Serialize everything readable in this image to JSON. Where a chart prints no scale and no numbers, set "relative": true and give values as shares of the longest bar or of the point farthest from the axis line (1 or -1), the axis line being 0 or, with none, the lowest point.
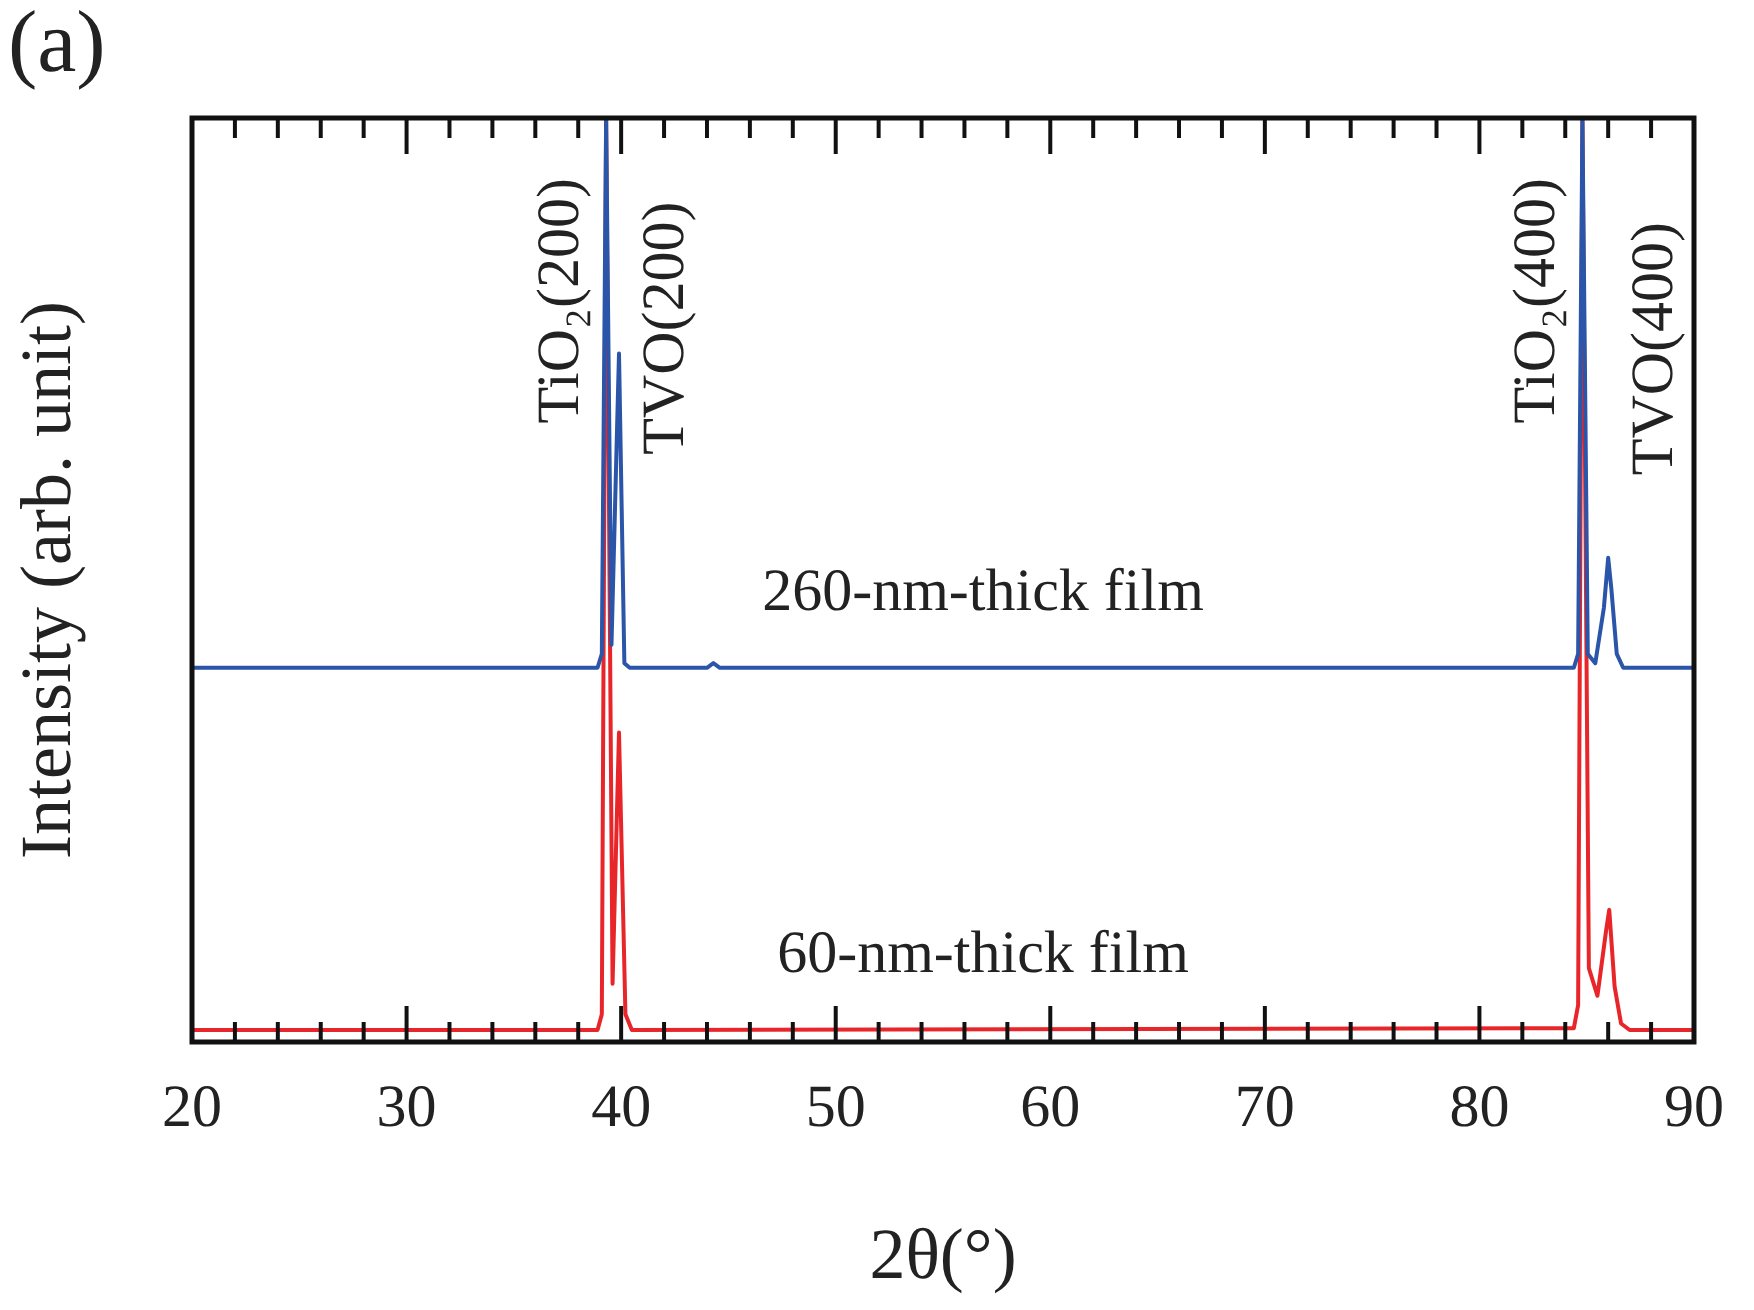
{
  "chart_data": {
    "type": "line",
    "relative": true,
    "xlabel": "2θ(°)",
    "ylabel": "Intensity (arb. unit)",
    "xlim": [
      20,
      90
    ],
    "xticks": [
      20,
      {
        "value": 22,
        "label": null
      },
      {
        "value": 24,
        "label": null
      },
      {
        "value": 26,
        "label": null
      },
      {
        "value": 28,
        "label": null
      },
      30,
      {
        "value": 32,
        "label": null
      },
      {
        "value": 34,
        "label": null
      },
      {
        "value": 36,
        "label": null
      },
      {
        "value": 38,
        "label": null
      },
      40,
      {
        "value": 42,
        "label": null
      },
      {
        "value": 44,
        "label": null
      },
      {
        "value": 46,
        "label": null
      },
      {
        "value": 48,
        "label": null
      },
      50,
      {
        "value": 52,
        "label": null
      },
      {
        "value": 54,
        "label": null
      },
      {
        "value": 56,
        "label": null
      },
      {
        "value": 58,
        "label": null
      },
      60,
      {
        "value": 62,
        "label": null
      },
      {
        "value": 64,
        "label": null
      },
      {
        "value": 66,
        "label": null
      },
      {
        "value": 68,
        "label": null
      },
      70,
      {
        "value": 72,
        "label": null
      },
      {
        "value": 74,
        "label": null
      },
      {
        "value": 76,
        "label": null
      },
      {
        "value": 78,
        "label": null
      },
      80,
      {
        "value": 82,
        "label": null
      },
      {
        "value": 84,
        "label": null
      },
      {
        "value": 86,
        "label": null
      },
      {
        "value": 88,
        "label": null
      },
      90
    ],
    "legend": false,
    "grid": false,
    "marker": "none",
    "line_style": "solid",
    "series": [
      {
        "name": "260-nm-thick film",
        "color": "#2a55a8",
        "x": [
          20,
          38.9,
          39.1,
          39.3,
          39.55,
          39.9,
          40.15,
          40.4,
          44,
          44.3,
          44.6,
          84.4,
          84.6,
          84.8,
          85.05,
          85.4,
          85.8,
          86.0,
          86.15,
          86.4,
          86.7,
          90
        ],
        "values": [
          0.405,
          0.405,
          0.42,
          1,
          0.43,
          0.745,
          0.41,
          0.405,
          0.405,
          0.41,
          0.405,
          0.405,
          0.42,
          1,
          0.42,
          0.41,
          0.47,
          0.524,
          0.49,
          0.42,
          0.405,
          0.405
        ]
      },
      {
        "name": "60-nm-thick film",
        "color": "#e8262a",
        "x": [
          20,
          38.9,
          39.1,
          39.3,
          39.6,
          39.9,
          40.2,
          40.5,
          84.4,
          84.6,
          84.8,
          85.1,
          85.5,
          85.9,
          86.05,
          86.3,
          86.6,
          87,
          90
        ],
        "values": [
          0.013,
          0.013,
          0.03,
          1,
          0.063,
          0.335,
          0.03,
          0.013,
          0.015,
          0.04,
          1,
          0.08,
          0.05,
          0.12,
          0.143,
          0.06,
          0.02,
          0.013,
          0.013
        ]
      }
    ],
    "annotations": [
      "(a)",
      {
        "text": "TiO₂(200)",
        "x": 39.3,
        "y": 1
      },
      {
        "text": "TVO(200)",
        "x": 39.9,
        "y": 0.745
      },
      {
        "text": "TiO₂(400)",
        "x": 84.8,
        "y": 1
      },
      {
        "text": "TVO(400)",
        "x": 86.0,
        "y": 0.524
      }
    ]
  }
}
